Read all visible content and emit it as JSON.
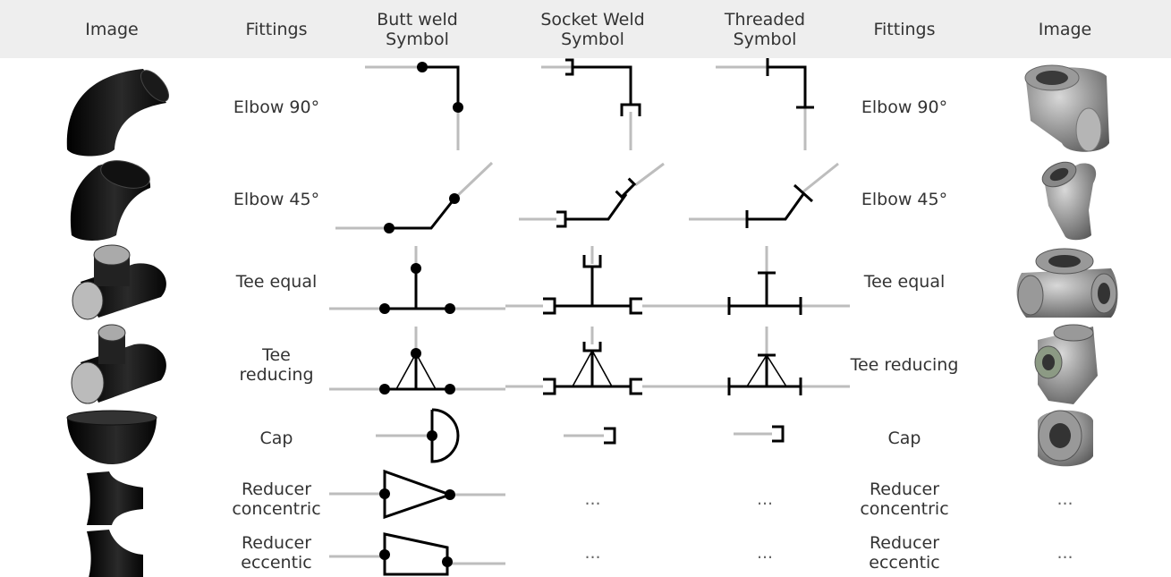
{
  "header": [
    "Image",
    "Fittings",
    "Butt weld Symbol",
    "Socket Weld Symbol",
    "Threaded Symbol",
    "Fittings",
    "Image"
  ],
  "rows": [
    {
      "fitting": "Elbow 90°"
    },
    {
      "fitting": "Elbow 45°"
    },
    {
      "fitting": "Tee equal"
    },
    {
      "fitting": "Tee reducing"
    },
    {
      "fitting": "Cap"
    },
    {
      "fitting": "Reducer concentric",
      "socket_weld": "...",
      "threaded": "...",
      "image": "..."
    },
    {
      "fitting": "Reducer eccentic",
      "socket_weld": "...",
      "threaded": "...",
      "image": "..."
    }
  ]
}
